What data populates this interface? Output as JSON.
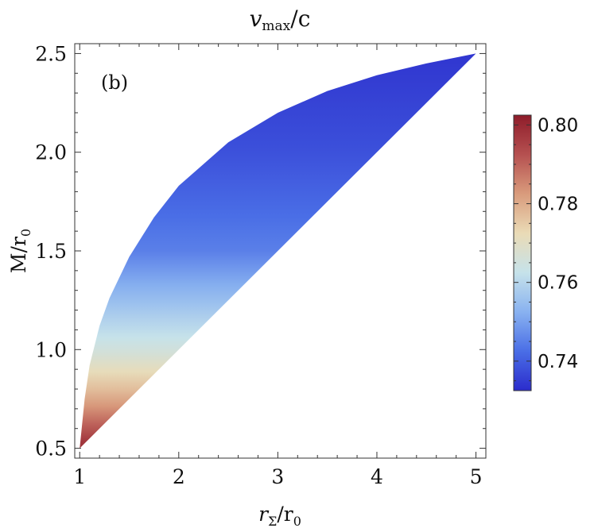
{
  "chart_data": {
    "type": "heatmap",
    "title": "v",
    "title_sub": "max",
    "title_tail": "/c",
    "xlabel": "r",
    "xlabel_sub": "Σ",
    "xlabel_tail": "/r",
    "xlabel_tail_sub": "0",
    "ylabel": "M/r",
    "ylabel_sub": "0",
    "annotation": "(b)",
    "xlim": [
      0.95,
      5.1
    ],
    "ylim": [
      0.45,
      2.55
    ],
    "x_ticks": [
      1,
      2,
      3,
      4,
      5
    ],
    "x_tick_labels": [
      "1",
      "2",
      "3",
      "4",
      "5"
    ],
    "y_ticks": [
      0.5,
      1.0,
      1.5,
      2.0,
      2.5
    ],
    "y_tick_labels": [
      "0.5",
      "1.0",
      "1.5",
      "2.0",
      "2.5"
    ],
    "region": {
      "lower_boundary": [
        [
          1.0,
          0.5
        ],
        [
          5.0,
          2.5
        ]
      ],
      "upper_boundary": [
        [
          1.0,
          0.5
        ],
        [
          1.05,
          0.75
        ],
        [
          1.1,
          0.92
        ],
        [
          1.2,
          1.12
        ],
        [
          1.3,
          1.26
        ],
        [
          1.5,
          1.47
        ],
        [
          1.75,
          1.67
        ],
        [
          2.0,
          1.83
        ],
        [
          2.5,
          2.05
        ],
        [
          3.0,
          2.2
        ],
        [
          3.5,
          2.31
        ],
        [
          4.0,
          2.39
        ],
        [
          4.5,
          2.45
        ],
        [
          5.0,
          2.5
        ]
      ]
    },
    "color_samples_M": [
      0.5,
      0.75,
      1.0,
      1.25,
      1.5,
      2.0,
      2.5
    ],
    "color_samples_v": [
      0.8,
      0.78,
      0.765,
      0.755,
      0.745,
      0.738,
      0.734
    ],
    "colorbar": {
      "range": [
        0.7325,
        0.8025
      ],
      "ticks": [
        0.74,
        0.76,
        0.78,
        0.8
      ],
      "tick_labels": [
        "0.74",
        "0.76",
        "0.78",
        "0.80"
      ],
      "colors": [
        "#2b2ccc",
        "#4a6ee6",
        "#89b2f0",
        "#c6e2ea",
        "#eadbb6",
        "#d99b7c",
        "#b55050",
        "#8e1c2a"
      ]
    }
  }
}
